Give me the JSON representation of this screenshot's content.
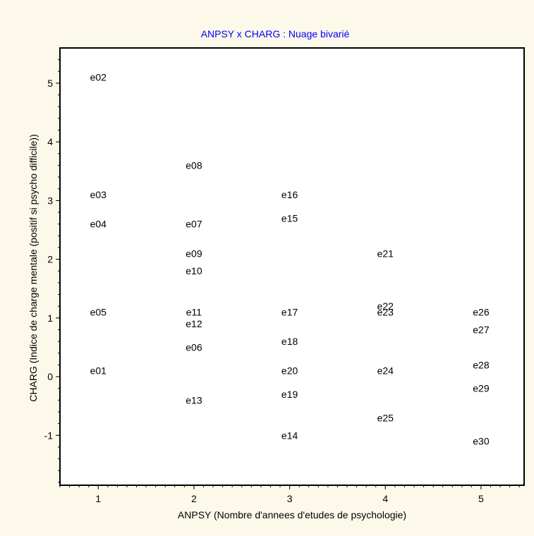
{
  "chart_data": {
    "type": "scatter",
    "title": "ANPSY x CHARG : Nuage bivarié",
    "xlabel": "ANPSY (Nombre d'annees d'etudes de psychologie)",
    "ylabel": "CHARG (Indice de charge mentale (positif si psycho difficile))",
    "xlim": [
      0.6,
      5.45
    ],
    "ylim": [
      -1.85,
      5.6
    ],
    "xticks": [
      1,
      2,
      3,
      4,
      5
    ],
    "yticks": [
      -1,
      0,
      1,
      2,
      3,
      4,
      5
    ],
    "grid": false,
    "colors": {
      "background": "#fdf9ea",
      "title": "#0000ff",
      "text": "#000000"
    },
    "points": [
      {
        "label": "e01",
        "x": 1,
        "y": 0.1
      },
      {
        "label": "e02",
        "x": 1,
        "y": 5.1
      },
      {
        "label": "e03",
        "x": 1,
        "y": 3.1
      },
      {
        "label": "e04",
        "x": 1,
        "y": 2.6
      },
      {
        "label": "e05",
        "x": 1,
        "y": 1.1
      },
      {
        "label": "e06",
        "x": 2,
        "y": 0.5
      },
      {
        "label": "e07",
        "x": 2,
        "y": 2.6
      },
      {
        "label": "e08",
        "x": 2,
        "y": 3.6
      },
      {
        "label": "e09",
        "x": 2,
        "y": 2.1
      },
      {
        "label": "e10",
        "x": 2,
        "y": 1.8
      },
      {
        "label": "e11",
        "x": 2,
        "y": 1.1
      },
      {
        "label": "e12",
        "x": 2,
        "y": 0.9
      },
      {
        "label": "e13",
        "x": 2,
        "y": -0.4
      },
      {
        "label": "e14",
        "x": 3,
        "y": -1.0
      },
      {
        "label": "e15",
        "x": 3,
        "y": 2.7
      },
      {
        "label": "e16",
        "x": 3,
        "y": 3.1
      },
      {
        "label": "e17",
        "x": 3,
        "y": 1.1
      },
      {
        "label": "e18",
        "x": 3,
        "y": 0.6
      },
      {
        "label": "e19",
        "x": 3,
        "y": -0.3
      },
      {
        "label": "e20",
        "x": 3,
        "y": 0.1
      },
      {
        "label": "e21",
        "x": 4,
        "y": 2.1
      },
      {
        "label": "e22",
        "x": 4,
        "y": 1.2
      },
      {
        "label": "e23",
        "x": 4,
        "y": 1.1
      },
      {
        "label": "e24",
        "x": 4,
        "y": 0.1
      },
      {
        "label": "e25",
        "x": 4,
        "y": -0.7
      },
      {
        "label": "e26",
        "x": 5,
        "y": 1.1
      },
      {
        "label": "e27",
        "x": 5,
        "y": 0.8
      },
      {
        "label": "e28",
        "x": 5,
        "y": 0.2
      },
      {
        "label": "e29",
        "x": 5,
        "y": -0.2
      },
      {
        "label": "e30",
        "x": 5,
        "y": -1.1
      }
    ]
  }
}
